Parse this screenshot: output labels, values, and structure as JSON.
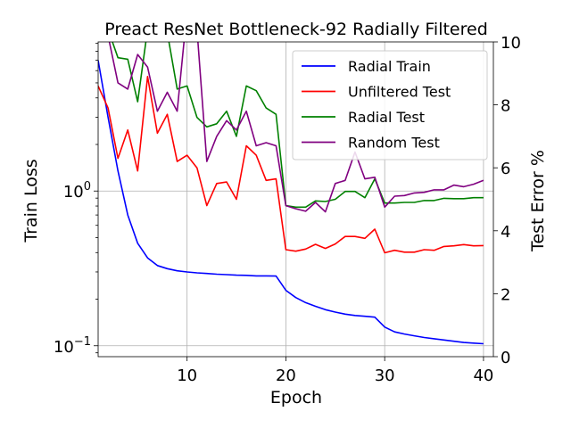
{
  "chart_data": {
    "type": "line",
    "title": "Preact ResNet Bottleneck-92 Radially Filtered",
    "xlabel": "Epoch",
    "ylabel_left": "Train Loss",
    "ylabel_right": "Test Error %",
    "xlim": [
      1,
      41
    ],
    "ylim_left": [
      0.085,
      9.2
    ],
    "yscale_left": "log",
    "ylim_right": [
      0,
      10
    ],
    "grid": true,
    "legend_position": "upper right",
    "x": [
      1,
      2,
      3,
      4,
      5,
      6,
      7,
      8,
      9,
      10,
      11,
      12,
      13,
      14,
      15,
      16,
      17,
      18,
      19,
      20,
      21,
      22,
      23,
      24,
      25,
      26,
      27,
      28,
      29,
      30,
      31,
      32,
      33,
      34,
      35,
      36,
      37,
      38,
      39,
      40
    ],
    "x_ticks": [
      {
        "value": 10,
        "label": "10"
      },
      {
        "value": 20,
        "label": "20"
      },
      {
        "value": 30,
        "label": "30"
      },
      {
        "value": 40,
        "label": "40"
      }
    ],
    "y_left_ticks": [
      {
        "value": 0.1,
        "base": "10",
        "exp": "−1"
      },
      {
        "value": 1,
        "base": "10",
        "exp": "0"
      }
    ],
    "y_right_ticks": [
      {
        "value": 0,
        "label": "0"
      },
      {
        "value": 2,
        "label": "2"
      },
      {
        "value": 4,
        "label": "4"
      },
      {
        "value": 6,
        "label": "6"
      },
      {
        "value": 8,
        "label": "8"
      },
      {
        "value": 10,
        "label": "10"
      }
    ],
    "series": [
      {
        "name": "Radial Train",
        "axis": "left",
        "color": "#0000ff",
        "values": [
          7.0,
          3.0,
          1.35,
          0.7,
          0.46,
          0.37,
          0.33,
          0.315,
          0.305,
          0.3,
          0.296,
          0.293,
          0.29,
          0.288,
          0.286,
          0.285,
          0.283,
          0.283,
          0.282,
          0.228,
          0.205,
          0.19,
          0.18,
          0.171,
          0.165,
          0.16,
          0.157,
          0.155,
          0.153,
          0.132,
          0.123,
          0.119,
          0.116,
          0.113,
          0.111,
          0.109,
          0.107,
          0.105,
          0.104,
          0.103
        ]
      },
      {
        "name": "Unfiltered Test",
        "axis": "right",
        "color": "#ff0000",
        "values": [
          8.6,
          7.9,
          6.3,
          7.2,
          5.9,
          8.9,
          7.1,
          7.7,
          6.2,
          6.4,
          6.0,
          4.8,
          5.5,
          5.55,
          5.0,
          6.7,
          6.4,
          5.6,
          5.65,
          3.4,
          3.35,
          3.42,
          3.57,
          3.44,
          3.58,
          3.82,
          3.82,
          3.76,
          4.05,
          3.3,
          3.38,
          3.32,
          3.32,
          3.4,
          3.38,
          3.5,
          3.52,
          3.56,
          3.52,
          3.53
        ]
      },
      {
        "name": "Radial Test",
        "axis": "right",
        "color": "#008000",
        "values": [
          10.3,
          10.4,
          9.5,
          9.45,
          8.1,
          10.4,
          10.4,
          10.3,
          8.5,
          8.6,
          7.6,
          7.3,
          7.4,
          7.8,
          7.0,
          8.6,
          8.45,
          7.9,
          7.7,
          4.8,
          4.75,
          4.75,
          4.95,
          4.93,
          5.0,
          5.25,
          5.25,
          5.05,
          5.65,
          4.88,
          4.88,
          4.9,
          4.9,
          4.96,
          4.96,
          5.03,
          5.02,
          5.02,
          5.05,
          5.05
        ]
      },
      {
        "name": "Random Test",
        "axis": "right",
        "color": "#800080",
        "values": [
          10.6,
          10.2,
          8.7,
          8.5,
          9.6,
          9.2,
          7.8,
          8.4,
          7.8,
          11.0,
          10.4,
          6.2,
          7.0,
          7.5,
          7.2,
          7.8,
          6.7,
          6.8,
          6.7,
          4.8,
          4.7,
          4.62,
          4.9,
          4.6,
          5.5,
          5.6,
          6.5,
          5.65,
          5.7,
          4.75,
          5.1,
          5.12,
          5.2,
          5.22,
          5.3,
          5.3,
          5.45,
          5.4,
          5.48,
          5.6
        ]
      }
    ]
  }
}
